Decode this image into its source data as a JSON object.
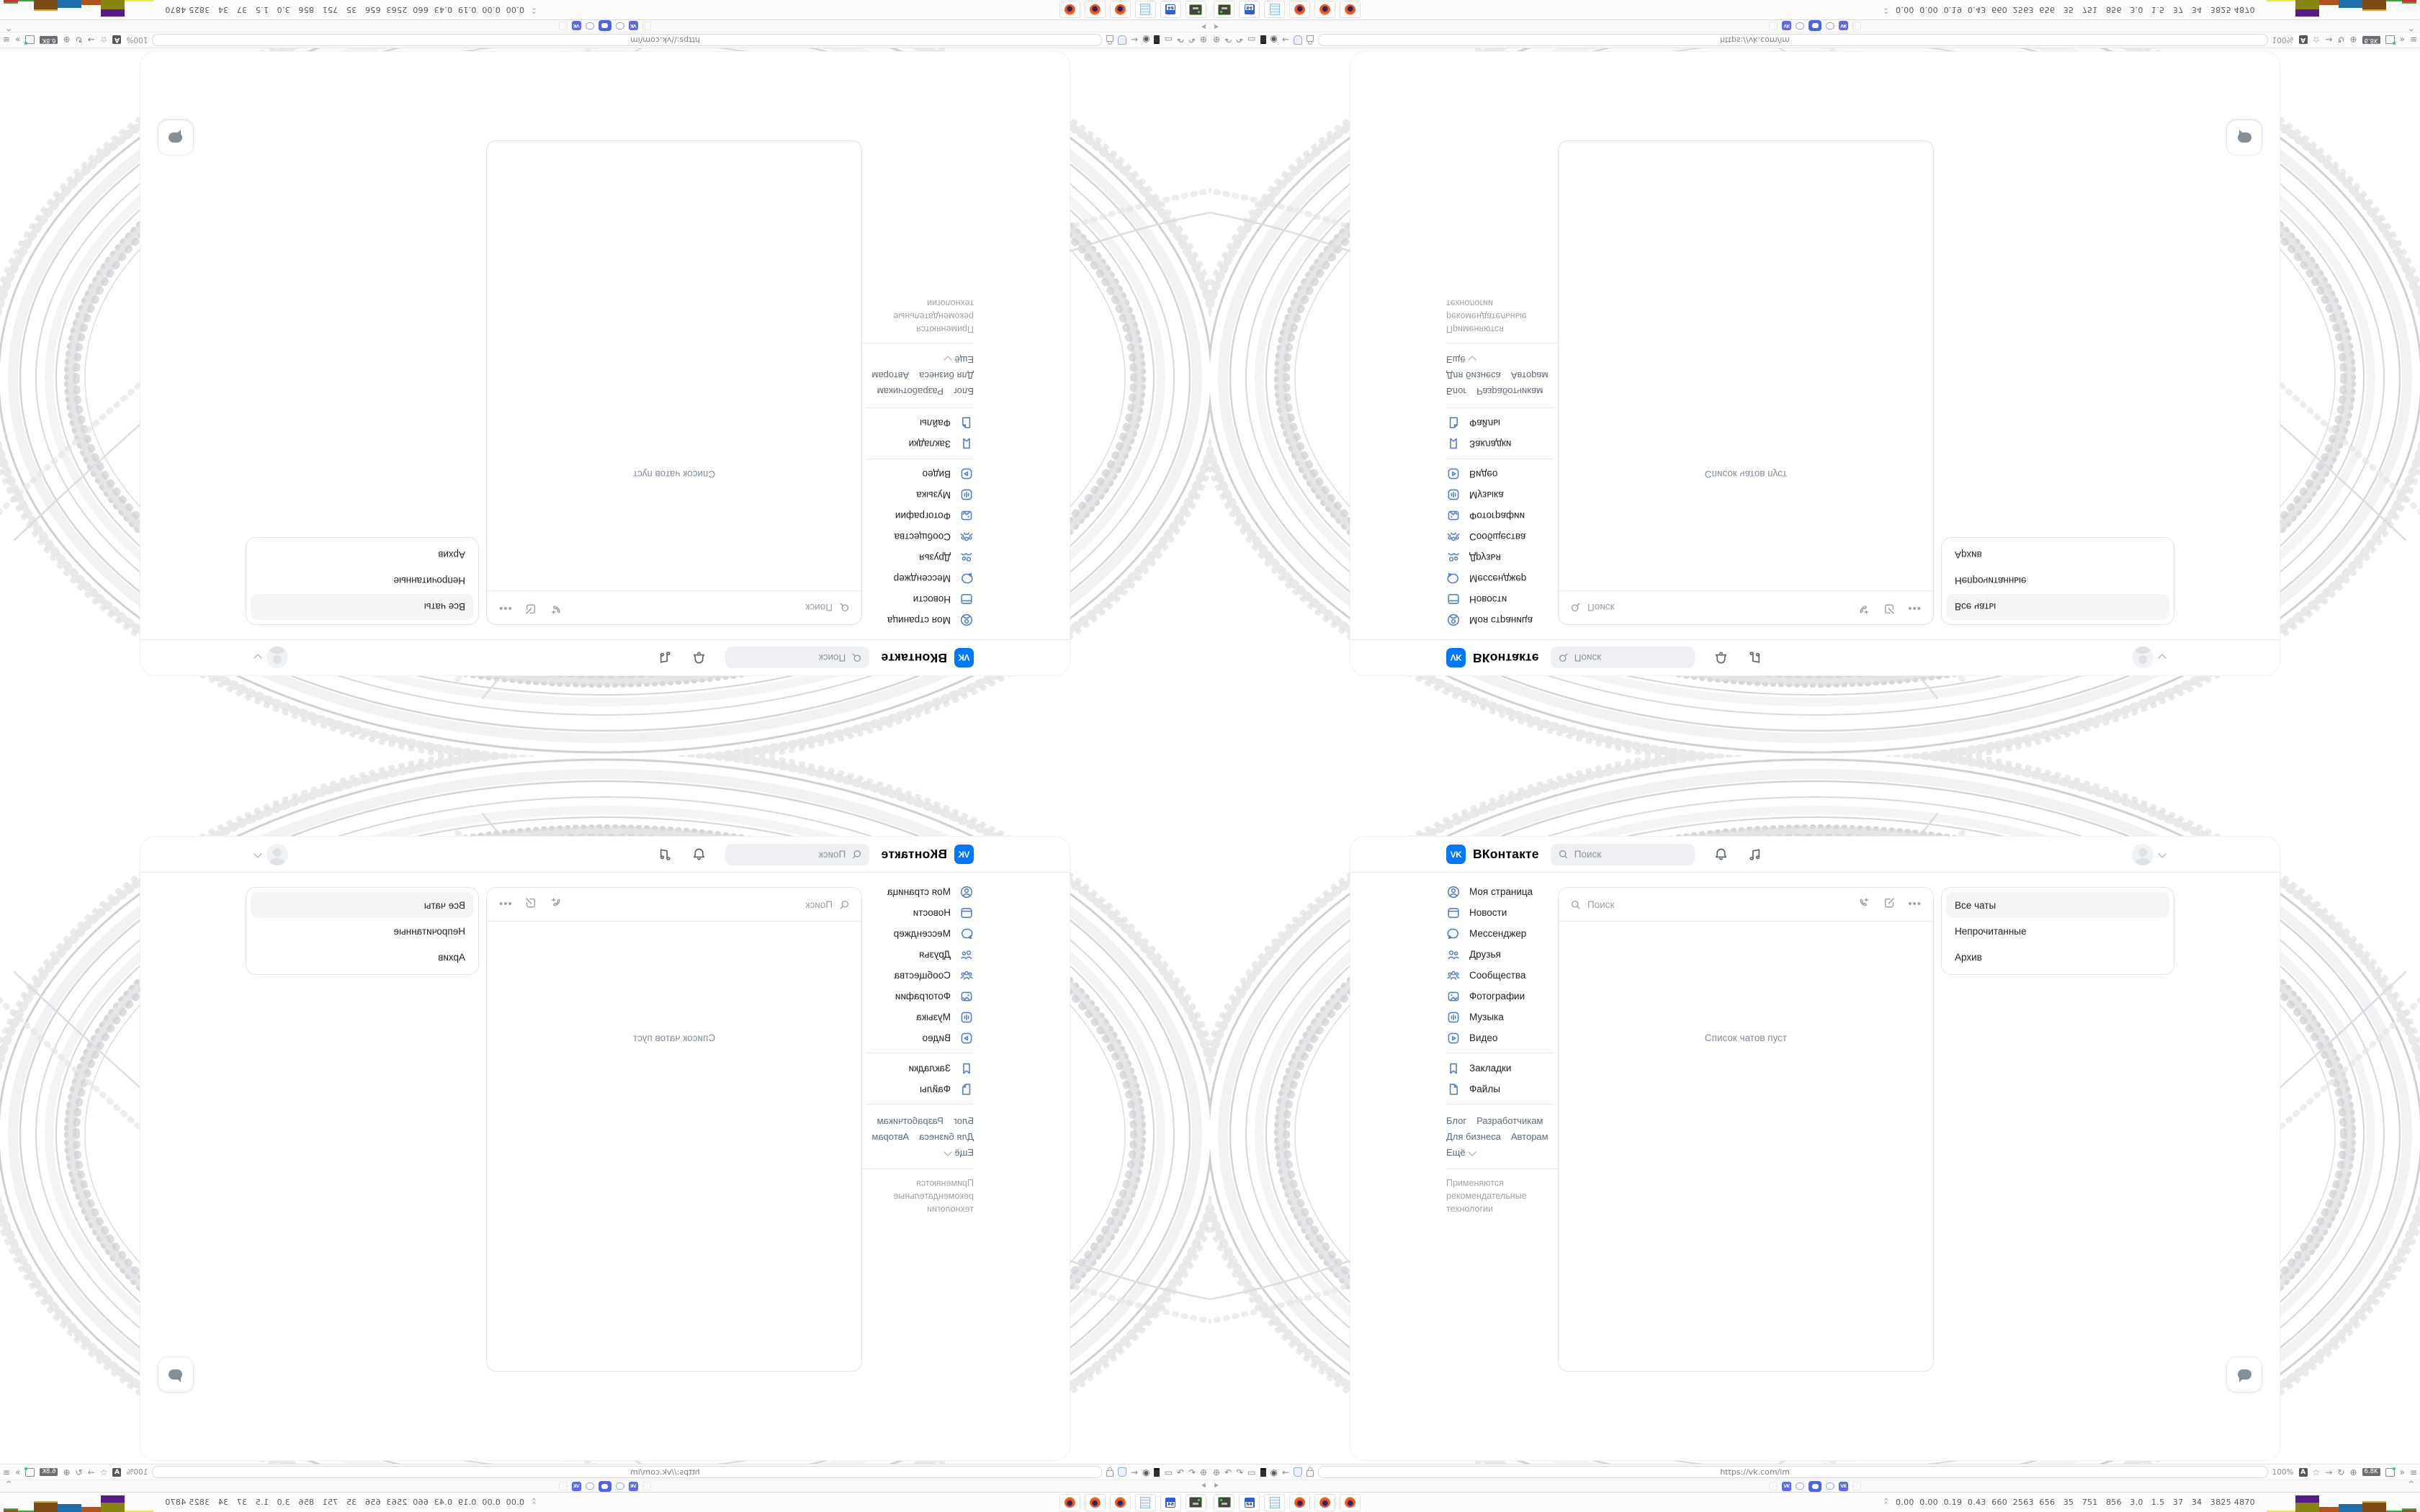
{
  "vk": {
    "logo_text": "VK",
    "brand": "ВКонтакте",
    "topbar": {
      "search_placeholder": "Поиск"
    },
    "sidebar": {
      "items": [
        {
          "label": "Моя страница"
        },
        {
          "label": "Новости"
        },
        {
          "label": "Мессенджер"
        },
        {
          "label": "Друзья"
        },
        {
          "label": "Сообщества"
        },
        {
          "label": "Фотографии"
        },
        {
          "label": "Музыка"
        },
        {
          "label": "Видео"
        },
        {
          "label": "Закладки"
        },
        {
          "label": "Файлы"
        }
      ]
    },
    "footer": {
      "links": [
        "Блог",
        "Разработчикам",
        "Для бизнеса",
        "Авторам",
        "Ещё"
      ],
      "note": "Применяются рекомендательные технологии"
    },
    "chat_panel": {
      "search_placeholder": "Поиск",
      "empty_text": "Список чатов пуст"
    },
    "filters": {
      "items": [
        "Все чаты",
        "Непрочитанные",
        "Архив"
      ],
      "selected": "Все чаты"
    },
    "colors": {
      "vk_blue": "#0077ff",
      "icon_blue": "#567fc2",
      "selected_bg": "#f4f5f7"
    }
  },
  "browser": {
    "url": "https://vk.com/im",
    "zoom_indicator": "100%",
    "link_badge": "6.8K",
    "floppy_label": "64",
    "translate_label": "A",
    "status_numbers": "0.00  0.00  0.19  0.43  660  2563  656   35   751   856   3.0   1.5   37   34   3825 4870",
    "meter_bars": [
      {
        "w": 40,
        "segs": [
          [
            "#eeea3e",
            2
          ]
        ]
      },
      {
        "w": 33,
        "segs": [
          [
            "#85850f",
            13
          ],
          [
            "#551a8b",
            10
          ]
        ]
      },
      {
        "w": 27,
        "segs": [
          [
            "#b0541c",
            7
          ]
        ]
      },
      {
        "w": 33,
        "segs": [
          [
            "#1f6fae",
            11
          ]
        ]
      },
      {
        "w": 33,
        "segs": [
          [
            "#7c4a12",
            13
          ],
          [
            "#e8a020",
            2
          ]
        ]
      },
      {
        "w": 22,
        "segs": [
          [
            "#2fae2f",
            2
          ]
        ]
      },
      {
        "w": 20,
        "segs": [
          [
            "#cc3333",
            3
          ],
          [
            "#2fae2f",
            2
          ]
        ]
      }
    ]
  }
}
